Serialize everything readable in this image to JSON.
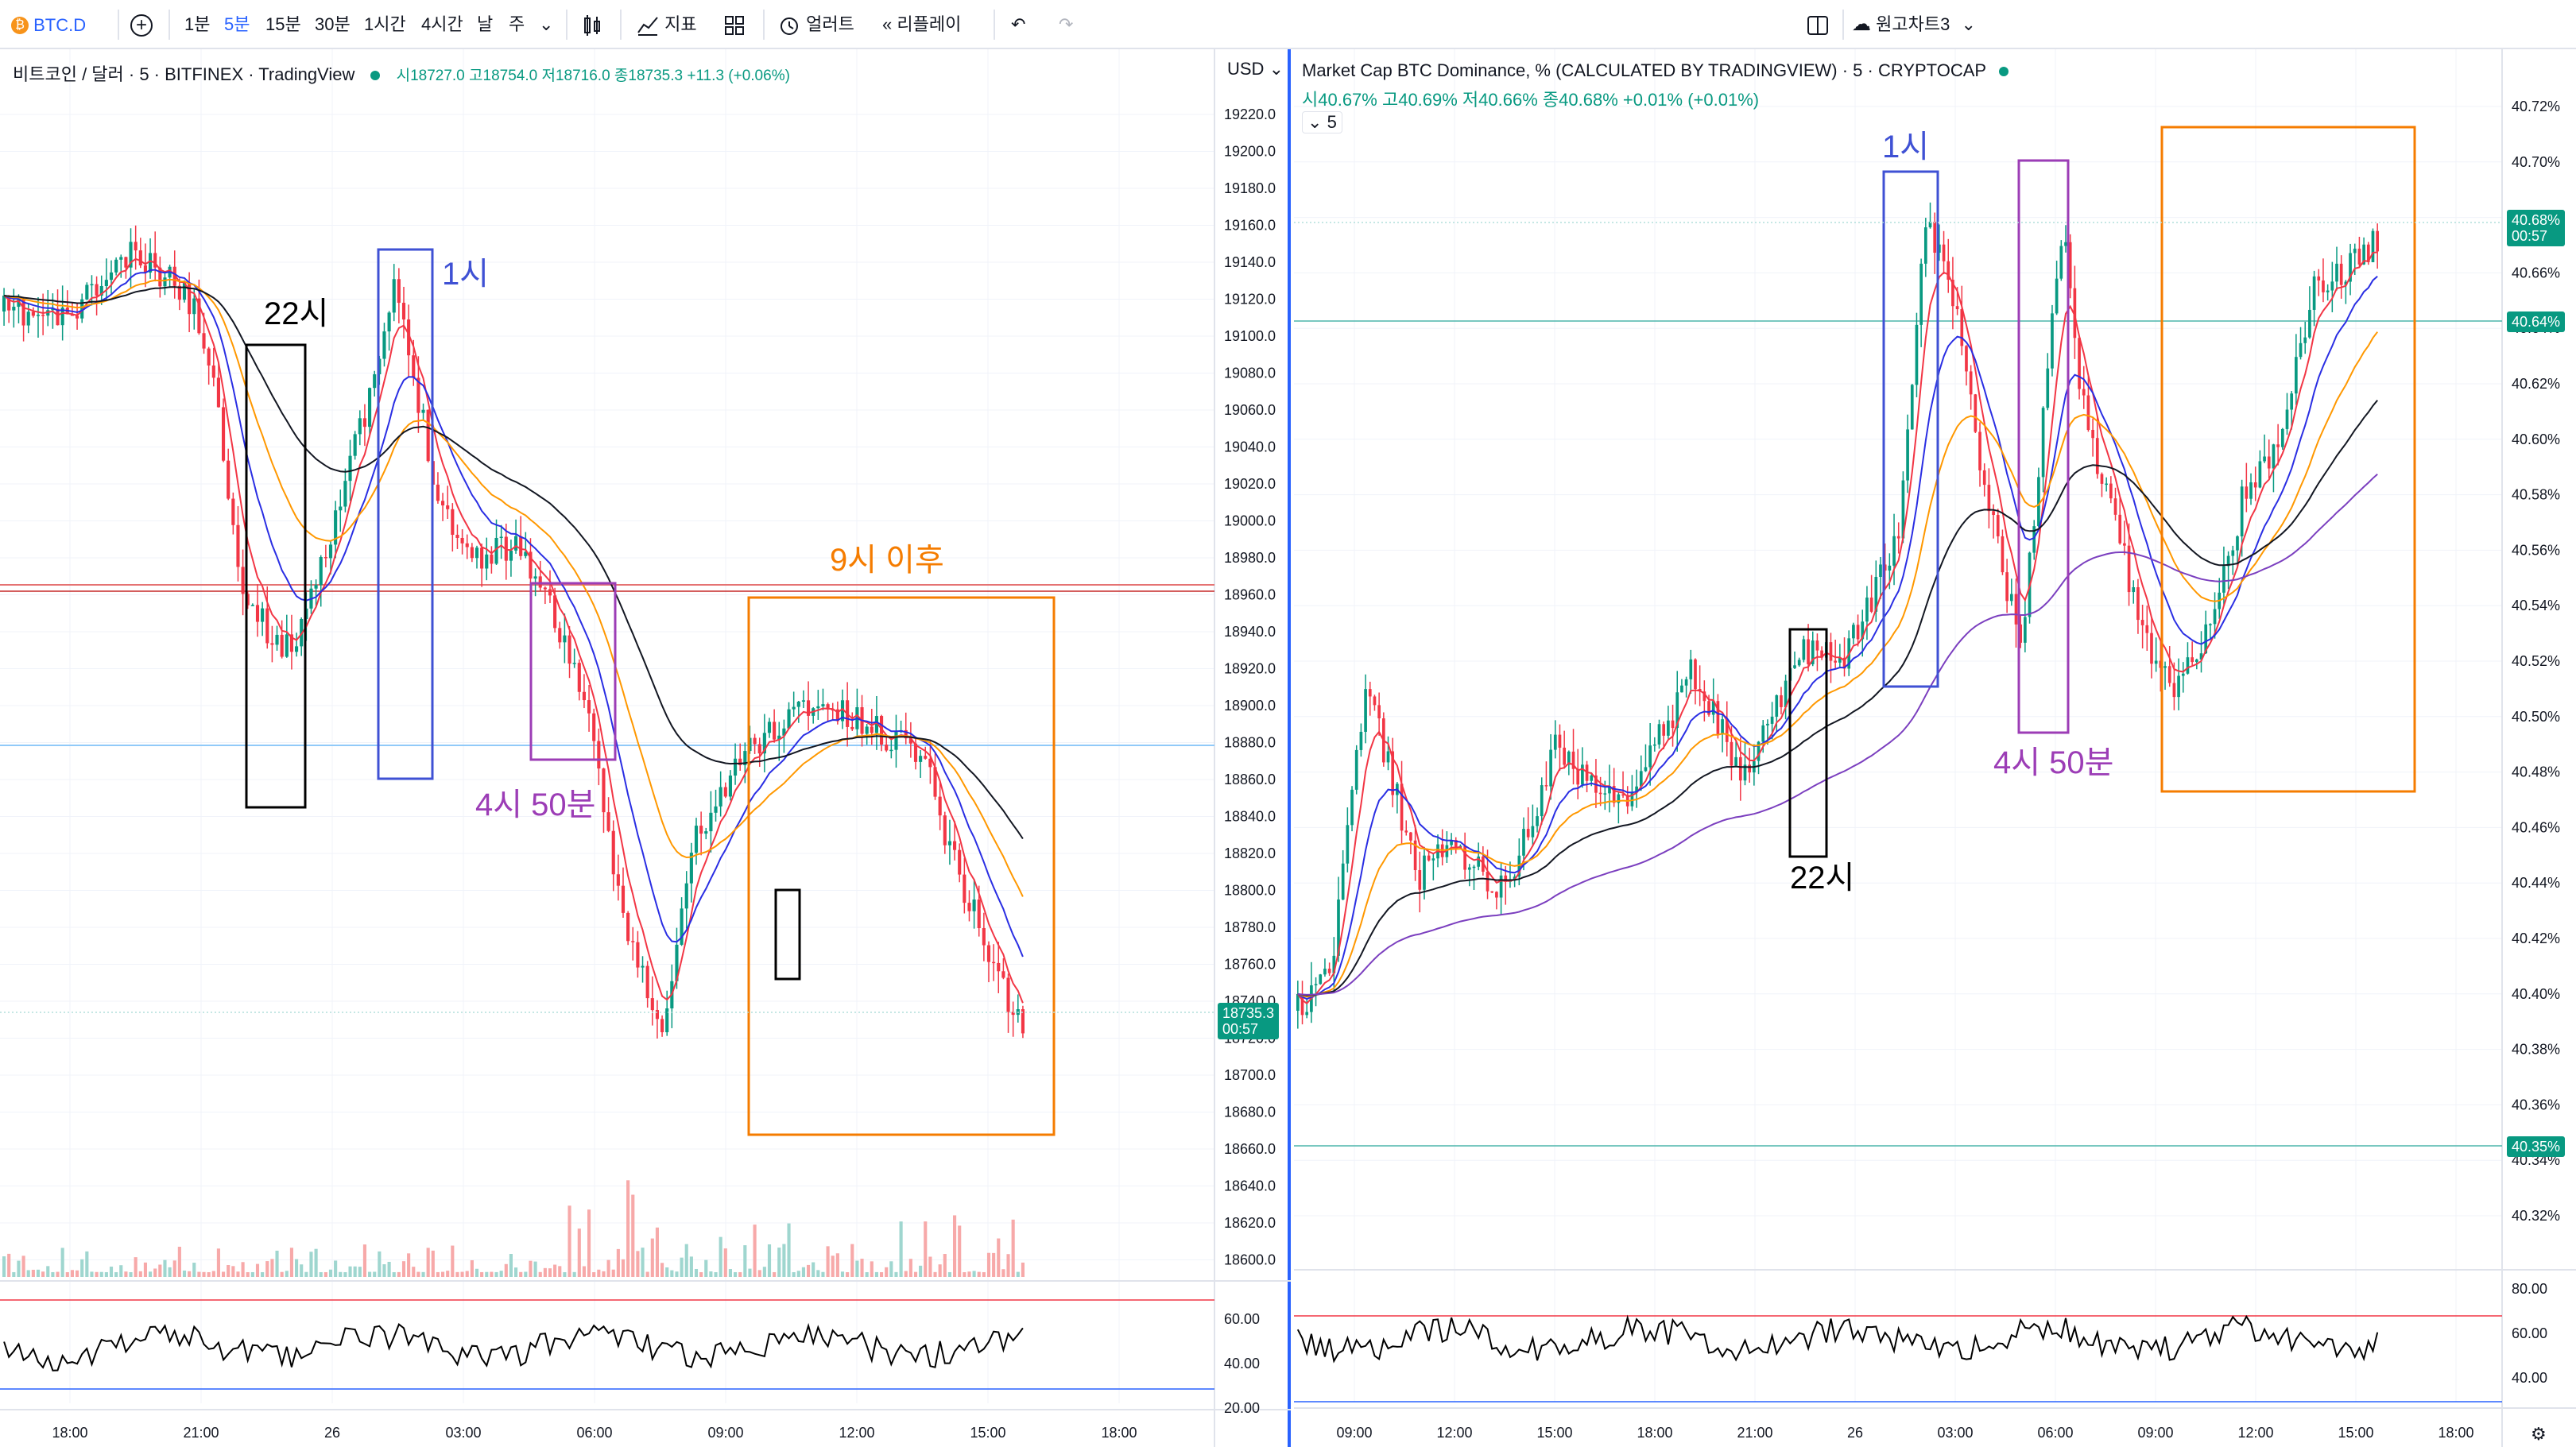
{
  "toolbar": {
    "symbol": "BTC.D",
    "intervals": [
      "1분",
      "5분",
      "15분",
      "30분",
      "1시간",
      "4시간",
      "날",
      "주"
    ],
    "active_interval": "5분",
    "indicators": "지표",
    "alert": "얼러트",
    "replay": "리플레이",
    "layout_name": "원고차트3"
  },
  "left_chart": {
    "title": "비트코인 / 달러 · 5 · BITFINEX · TradingView",
    "ohlc": "시18727.0 고18754.0 저18716.0 종18735.3 +11.3 (+0.06%)",
    "currency": "USD",
    "price_ticks": [
      "19220.0",
      "19200.0",
      "19180.0",
      "19160.0",
      "19140.0",
      "19120.0",
      "19100.0",
      "19080.0",
      "19060.0",
      "19040.0",
      "19020.0",
      "19000.0",
      "18980.0",
      "18960.0",
      "18940.0",
      "18920.0",
      "18900.0",
      "18880.0",
      "18860.0",
      "18840.0",
      "18820.0",
      "18800.0",
      "18780.0",
      "18760.0",
      "18740.0",
      "18720.0",
      "18700.0",
      "18680.0",
      "18660.0",
      "18640.0",
      "18620.0",
      "18600.0"
    ],
    "last_price": "18735.3",
    "countdown": "00:57",
    "rsi_ticks": [
      "60.00",
      "40.00",
      "20.00"
    ],
    "time_ticks": [
      "18:00",
      "21:00",
      "26",
      "03:00",
      "06:00",
      "09:00",
      "12:00",
      "15:00",
      "18:00"
    ],
    "annotations": {
      "a22": "22시",
      "a1": "1시",
      "a450": "4시 50분",
      "a9": "9시 이후"
    }
  },
  "right_chart": {
    "title": "Market Cap BTC Dominance, % (CALCULATED BY TRADINGVIEW) · 5 · CRYPTOCAP",
    "ohlc": "시40.67% 고40.69% 저40.66% 종40.68% +0.01% (+0.01%)",
    "collapse": "5",
    "price_ticks": [
      "40.72%",
      "40.70%",
      "40.68%",
      "40.66%",
      "40.64%",
      "40.62%",
      "40.60%",
      "40.58%",
      "40.56%",
      "40.54%",
      "40.52%",
      "40.50%",
      "40.48%",
      "40.46%",
      "40.44%",
      "40.42%",
      "40.40%",
      "40.38%",
      "40.36%",
      "40.34%",
      "40.32%"
    ],
    "last_price": "40.68%",
    "countdown": "00:57",
    "line_price_1": "40.64%",
    "line_price_2": "40.35%",
    "rsi_ticks": [
      "80.00",
      "60.00",
      "40.00"
    ],
    "time_ticks": [
      "09:00",
      "12:00",
      "15:00",
      "18:00",
      "21:00",
      "26",
      "03:00",
      "06:00",
      "09:00",
      "12:00",
      "15:00",
      "18:00"
    ],
    "annotations": {
      "a1": "1시",
      "a450": "4시 50분",
      "a22": "22시"
    }
  },
  "colors": {
    "up": "#089981",
    "down": "#f23645",
    "ma_red": "#f23645",
    "ma_blue": "#2a2ee3",
    "ma_orange": "#ff9800",
    "ma_black": "#131722",
    "ma_purple": "#7b3fbf",
    "box_black": "#000000",
    "box_blue": "#3f51d4",
    "box_purple": "#9c3db6",
    "box_orange": "#f57c00"
  }
}
